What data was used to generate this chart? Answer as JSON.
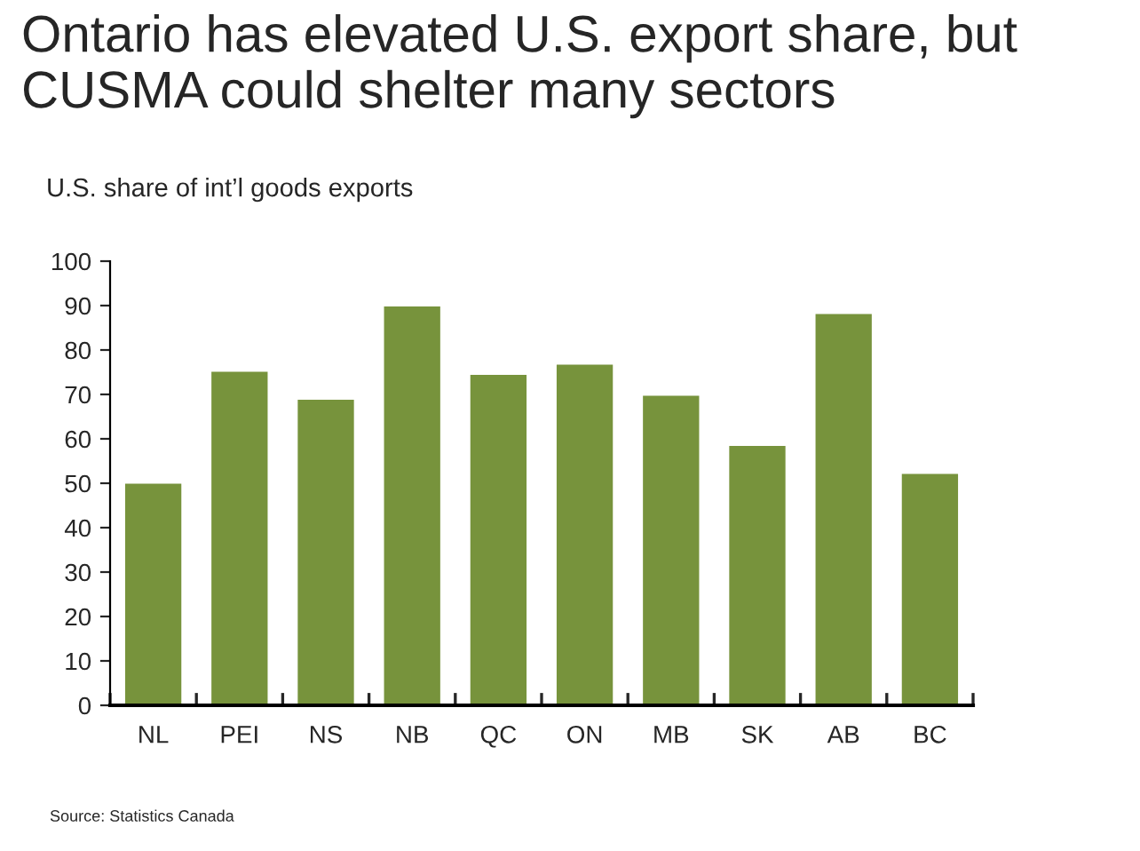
{
  "chart_data": {
    "type": "bar",
    "title": "Ontario has elevated U.S. export share, but CUSMA could shelter many sectors",
    "subtitle": "U.S. share of int’l goods exports",
    "categories": [
      "NL",
      "PEI",
      "NS",
      "NB",
      "QC",
      "ON",
      "MB",
      "SK",
      "AB",
      "BC"
    ],
    "values": [
      50.2,
      75.4,
      69.1,
      90.1,
      74.7,
      77.0,
      70.0,
      58.7,
      88.4,
      52.4
    ],
    "color": "#77933c",
    "ylim": [
      0,
      100
    ],
    "yticks": [
      0,
      10,
      20,
      30,
      40,
      50,
      60,
      70,
      80,
      90,
      100
    ],
    "grid": false,
    "legend": false,
    "annotations": [
      "Source: Statistics Canada"
    ]
  }
}
